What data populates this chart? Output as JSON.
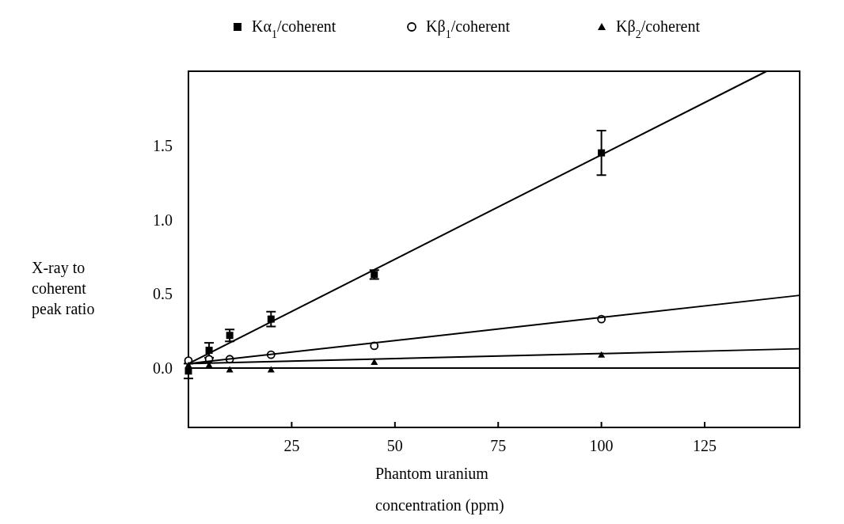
{
  "chart_data": {
    "type": "scatter",
    "xlabel": "Phantom uranium\nconcentration (ppm)",
    "ylabel": "X-ray to\ncoherent\npeak ratio",
    "xlim": [
      0,
      148
    ],
    "ylim": [
      -0.4,
      2.0
    ],
    "xticks": [
      25,
      50,
      75,
      100,
      125
    ],
    "yticks": [
      {
        "value": 0,
        "label": "0.0"
      },
      {
        "value": 0.5,
        "label": "0.5"
      },
      {
        "value": 1,
        "label": "1.0"
      },
      {
        "value": 1.5,
        "label": "1.5"
      }
    ],
    "x": [
      0,
      5,
      10,
      20,
      45,
      100
    ],
    "series": [
      {
        "name": "Kα$_{1}$/coherent",
        "color": "#000000",
        "marker": "square",
        "values": [
          -0.02,
          0.12,
          0.22,
          0.33,
          0.63,
          1.45
        ],
        "errors": [
          0.05,
          0.05,
          0.04,
          0.05,
          0.03,
          [
            1.3,
            1.6
          ]
        ]
      },
      {
        "name": "Kβ$_{1}$/coherent",
        "color": "#000000",
        "marker": "circle",
        "values": [
          0.05,
          0.06,
          0.06,
          0.09,
          0.15,
          0.33
        ]
      },
      {
        "name": "Kβ$_{2}$/coherent",
        "color": "#000000",
        "marker": "triangle",
        "values": [
          0.02,
          0.02,
          -0.01,
          -0.01,
          0.04,
          0.09
        ]
      },
      {
        "type": "line",
        "color": "#000000",
        "x": [
          0,
          140
        ],
        "values": [
          0.03,
          2.0
        ]
      },
      {
        "type": "line",
        "color": "#000000",
        "x": [
          0,
          148
        ],
        "values": [
          0.03,
          0.49
        ]
      },
      {
        "type": "line",
        "color": "#000000",
        "x": [
          0,
          148
        ],
        "values": [
          0.03,
          0.13
        ]
      }
    ],
    "ref_lines": [
      {
        "axis": "y",
        "value": 0
      }
    ],
    "legend": "top"
  }
}
